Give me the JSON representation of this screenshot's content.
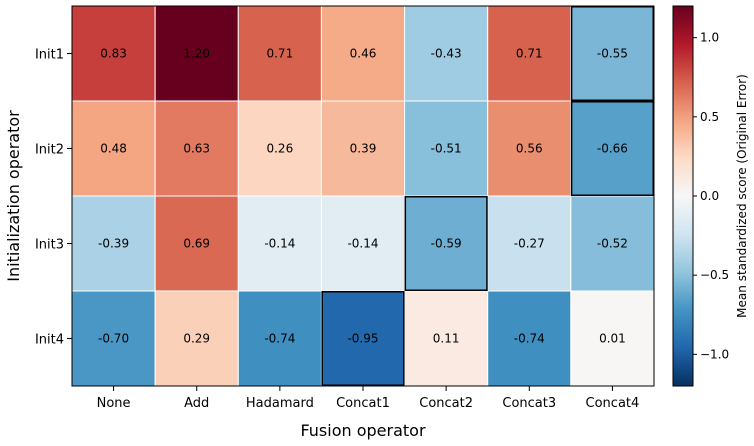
{
  "chart_data": {
    "type": "heatmap",
    "xlabel": "Fusion operator",
    "ylabel": "Initialization operator",
    "x_categories": [
      "None",
      "Add",
      "Hadamard",
      "Concat1",
      "Concat2",
      "Concat3",
      "Concat4"
    ],
    "y_categories": [
      "Init1",
      "Init2",
      "Init3",
      "Init4"
    ],
    "values": [
      [
        0.83,
        1.2,
        0.71,
        0.46,
        -0.43,
        0.71,
        -0.55
      ],
      [
        0.48,
        0.63,
        0.26,
        0.39,
        -0.51,
        0.56,
        -0.66
      ],
      [
        -0.39,
        0.69,
        -0.14,
        -0.14,
        -0.59,
        -0.27,
        -0.52
      ],
      [
        -0.7,
        0.29,
        -0.74,
        -0.95,
        0.11,
        -0.74,
        0.01
      ]
    ],
    "cell_labels": [
      [
        "0.83",
        "1.20",
        "0.71",
        "0.46",
        "-0.43",
        "0.71",
        "-0.55"
      ],
      [
        "0.48",
        "0.63",
        "0.26",
        "0.39",
        "-0.51",
        "0.56",
        "-0.66"
      ],
      [
        "-0.39",
        "0.69",
        "-0.14",
        "-0.14",
        "-0.59",
        "-0.27",
        "-0.52"
      ],
      [
        "-0.70",
        "0.29",
        "-0.74",
        "-0.95",
        "0.11",
        "-0.74",
        "0.01"
      ]
    ],
    "highlighted_cells": [
      [
        3,
        3
      ],
      [
        2,
        4
      ],
      [
        1,
        6
      ],
      [
        0,
        6
      ]
    ],
    "colormap": "RdBu_r",
    "vmin": -1.2,
    "vmax": 1.2,
    "colorbar": {
      "label": "Mean standardized score (Original Error)",
      "ticks": [
        -1.0,
        -0.5,
        0.0,
        0.5,
        1.0
      ],
      "tick_labels": [
        "−1.0",
        "−0.5",
        "0.0",
        "0.5",
        "1.0"
      ]
    },
    "grid": false
  }
}
